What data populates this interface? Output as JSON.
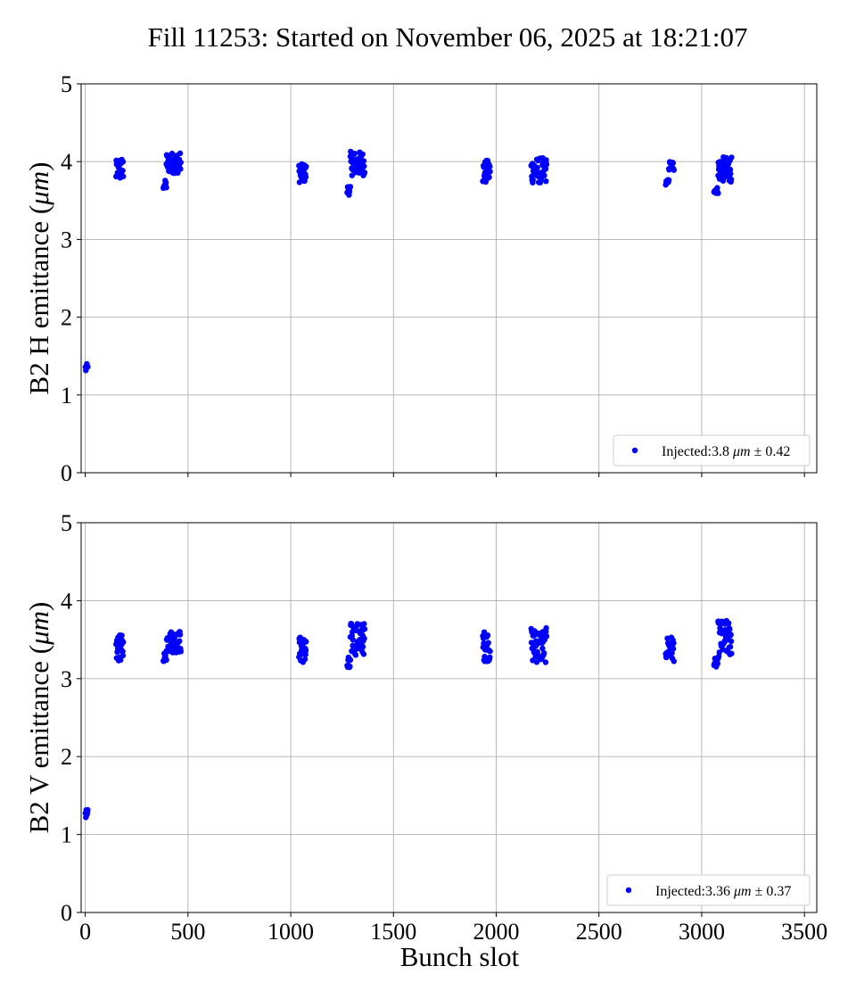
{
  "title": "Fill 11253: Started on November 06, 2025 at 18:21:07",
  "colors": {
    "points": "#0000ff",
    "grid": "#b0b0b0",
    "axes": "#000000"
  },
  "chart_data": [
    {
      "type": "scatter",
      "ylabel_prefix": "B2 H emittance (",
      "ylabel_unit": "μm",
      "ylabel_suffix": ")",
      "xlabel": "",
      "xlim": [
        -20,
        3560
      ],
      "ylim": [
        0,
        5
      ],
      "xticks": [
        0,
        500,
        1000,
        1500,
        2000,
        2500,
        3000,
        3500
      ],
      "xtick_labels_visible": false,
      "yticks": [
        0,
        1,
        2,
        3,
        4,
        5
      ],
      "grid": true,
      "legend_placement": "lower-right",
      "legend": {
        "prefix": "Injected:3.8 ",
        "unit": "μm",
        "suffix": " ± 0.42"
      },
      "groups": [
        {
          "x_start": 1,
          "x_end": 12,
          "n": 6,
          "y_low": 1.28,
          "y_high": 1.4
        },
        {
          "x_start": 150,
          "x_end": 185,
          "n": 26,
          "y_low": 3.76,
          "y_high": 4.05
        },
        {
          "x_start": 380,
          "x_end": 395,
          "n": 8,
          "y_low": 3.64,
          "y_high": 3.76
        },
        {
          "x_start": 395,
          "x_end": 465,
          "n": 44,
          "y_low": 3.85,
          "y_high": 4.12
        },
        {
          "x_start": 1040,
          "x_end": 1075,
          "n": 26,
          "y_low": 3.73,
          "y_high": 3.97
        },
        {
          "x_start": 1275,
          "x_end": 1290,
          "n": 8,
          "y_low": 3.57,
          "y_high": 3.7
        },
        {
          "x_start": 1290,
          "x_end": 1360,
          "n": 44,
          "y_low": 3.82,
          "y_high": 4.13
        },
        {
          "x_start": 1935,
          "x_end": 1970,
          "n": 26,
          "y_low": 3.71,
          "y_high": 4.02
        },
        {
          "x_start": 2170,
          "x_end": 2245,
          "n": 50,
          "y_low": 3.72,
          "y_high": 4.05
        },
        {
          "x_start": 2825,
          "x_end": 2840,
          "n": 8,
          "y_low": 3.7,
          "y_high": 3.77
        },
        {
          "x_start": 2840,
          "x_end": 2865,
          "n": 18,
          "y_low": 3.88,
          "y_high": 4.01
        },
        {
          "x_start": 3060,
          "x_end": 3080,
          "n": 10,
          "y_low": 3.59,
          "y_high": 3.67
        },
        {
          "x_start": 3080,
          "x_end": 3145,
          "n": 44,
          "y_low": 3.74,
          "y_high": 4.06
        }
      ]
    },
    {
      "type": "scatter",
      "ylabel_prefix": "B2 V emittance (",
      "ylabel_unit": "μm",
      "ylabel_suffix": ")",
      "xlabel": "Bunch slot",
      "xlim": [
        -20,
        3560
      ],
      "ylim": [
        0,
        5
      ],
      "xticks": [
        0,
        500,
        1000,
        1500,
        2000,
        2500,
        3000,
        3500
      ],
      "xtick_labels_visible": true,
      "yticks": [
        0,
        1,
        2,
        3,
        4,
        5
      ],
      "grid": true,
      "legend_placement": "lower-right",
      "legend": {
        "prefix": "Injected:3.36 ",
        "unit": "μm",
        "suffix": " ± 0.37"
      },
      "groups": [
        {
          "x_start": 1,
          "x_end": 12,
          "n": 7,
          "y_low": 1.08,
          "y_high": 1.32
        },
        {
          "x_start": 150,
          "x_end": 185,
          "n": 26,
          "y_low": 3.22,
          "y_high": 3.56
        },
        {
          "x_start": 380,
          "x_end": 395,
          "n": 8,
          "y_low": 3.22,
          "y_high": 3.34
        },
        {
          "x_start": 395,
          "x_end": 465,
          "n": 44,
          "y_low": 3.33,
          "y_high": 3.62
        },
        {
          "x_start": 1040,
          "x_end": 1075,
          "n": 26,
          "y_low": 3.2,
          "y_high": 3.54
        },
        {
          "x_start": 1275,
          "x_end": 1290,
          "n": 8,
          "y_low": 3.06,
          "y_high": 3.28
        },
        {
          "x_start": 1290,
          "x_end": 1360,
          "n": 44,
          "y_low": 3.3,
          "y_high": 3.72
        },
        {
          "x_start": 1935,
          "x_end": 1970,
          "n": 26,
          "y_low": 3.22,
          "y_high": 3.62
        },
        {
          "x_start": 2170,
          "x_end": 2245,
          "n": 50,
          "y_low": 3.2,
          "y_high": 3.65
        },
        {
          "x_start": 2825,
          "x_end": 2865,
          "n": 26,
          "y_low": 3.22,
          "y_high": 3.55
        },
        {
          "x_start": 3060,
          "x_end": 3080,
          "n": 10,
          "y_low": 3.13,
          "y_high": 3.26
        },
        {
          "x_start": 3080,
          "x_end": 3145,
          "n": 44,
          "y_low": 3.28,
          "y_high": 3.75
        }
      ]
    }
  ]
}
